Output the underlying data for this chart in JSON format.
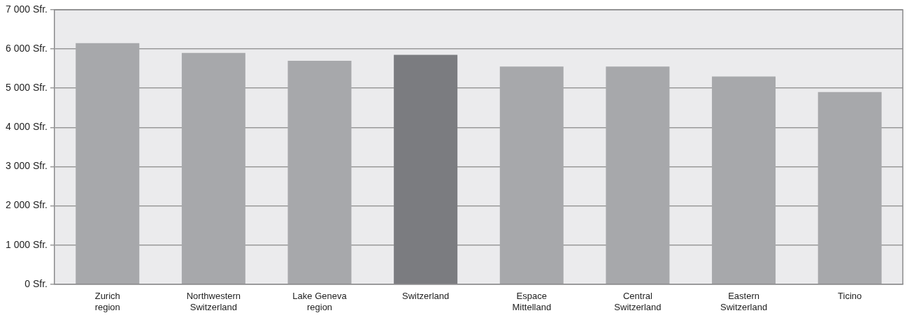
{
  "chart_data": {
    "type": "bar",
    "categories": [
      "Zurich\nregion",
      "Northwestern\nSwitzerland",
      "Lake Geneva\nregion",
      "Switzerland",
      "Espace\nMittelland",
      "Central\nSwitzerland",
      "Eastern\nSwitzerland",
      "Ticino"
    ],
    "values": [
      6150,
      5900,
      5700,
      5850,
      5550,
      5550,
      5300,
      4900
    ],
    "colors": [
      "#a7a8ab",
      "#a7a8ab",
      "#a7a8ab",
      "#7b7c80",
      "#a7a8ab",
      "#a7a8ab",
      "#a7a8ab",
      "#a7a8ab"
    ],
    "ylim": [
      0,
      7000
    ],
    "yticks": [
      {
        "value": 0,
        "label": "0 Sfr."
      },
      {
        "value": 1000,
        "label": "1 000 Sfr."
      },
      {
        "value": 2000,
        "label": "2 000 Sfr."
      },
      {
        "value": 3000,
        "label": "3 000 Sfr."
      },
      {
        "value": 4000,
        "label": "4 000 Sfr."
      },
      {
        "value": 5000,
        "label": "5 000 Sfr."
      },
      {
        "value": 6000,
        "label": "6 000 Sfr."
      },
      {
        "value": 7000,
        "label": "7 000 Sfr."
      }
    ],
    "grid": "y",
    "legend": false
  }
}
